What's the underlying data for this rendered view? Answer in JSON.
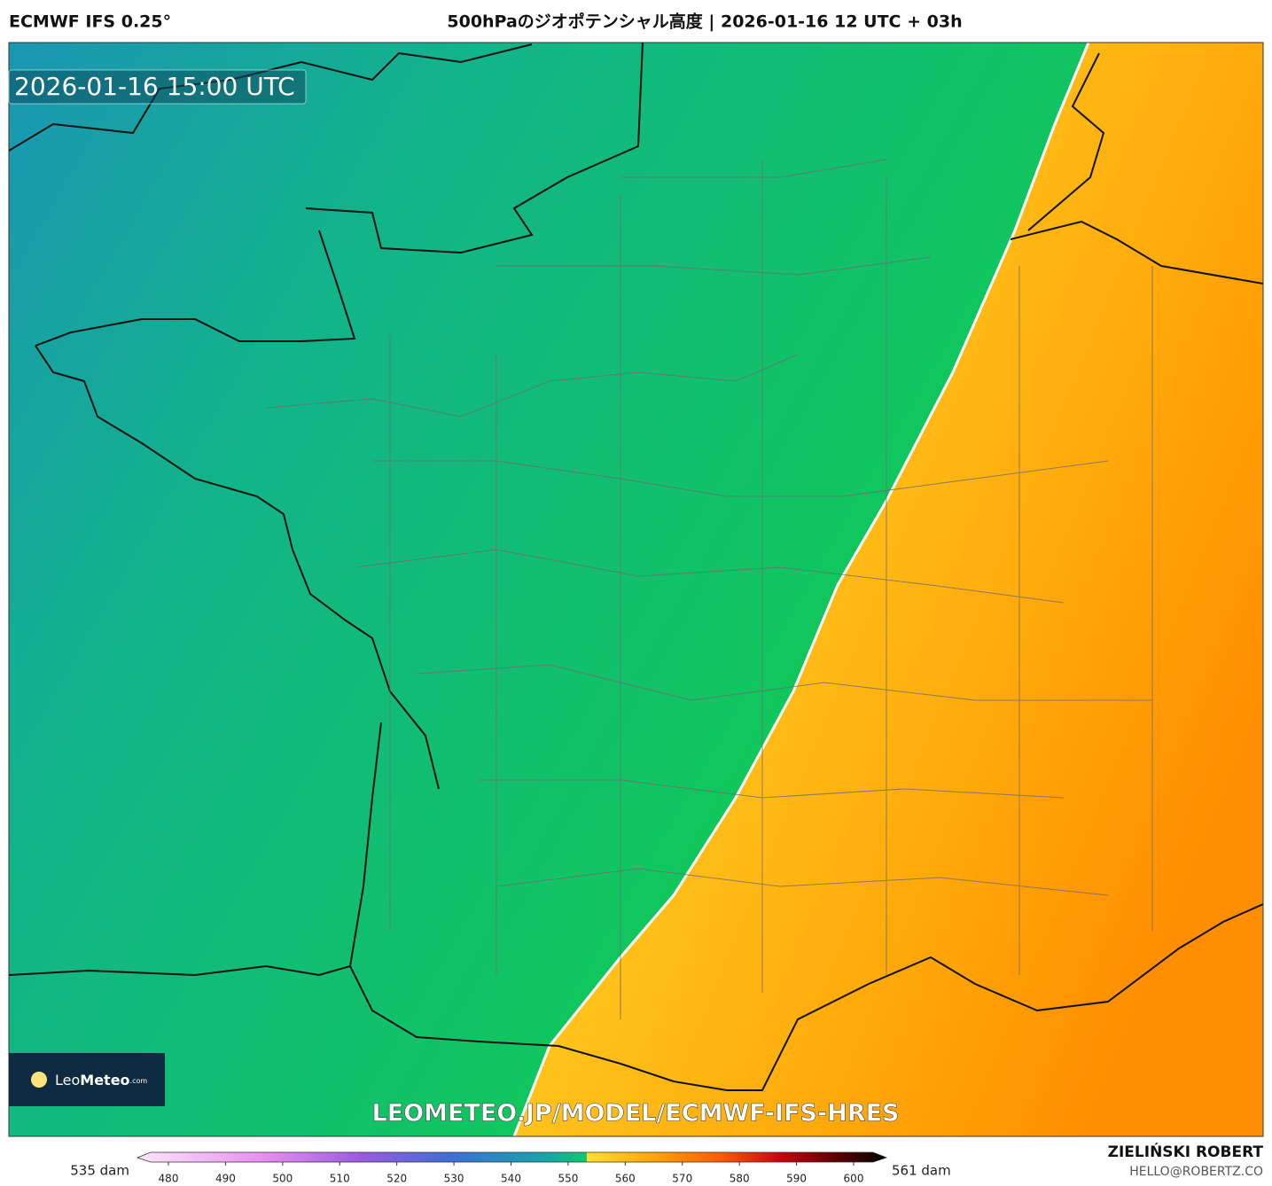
{
  "header": {
    "model": "ECMWF IFS 0.25°",
    "title": "500hPaのジオポテンシャル高度 | 2026-01-16 12 UTC + 03h"
  },
  "map": {
    "valid_time": "2026-01-16 15:00 UTC",
    "watermark": "LEOMETEO.JP/MODEL/ECMWF-IFS-HRES",
    "logo": {
      "name_light": "Leo",
      "name_bold": "Meteo",
      "suffix": ".com"
    }
  },
  "colorbar": {
    "min_label": "535 dam",
    "max_label": "561 dam",
    "ticks": [
      480,
      490,
      500,
      510,
      520,
      530,
      540,
      550,
      560,
      570,
      580,
      590,
      600
    ]
  },
  "footer": {
    "author": "ZIELIŃSKI ROBERT",
    "email": "HELLO@ROBERTZ.CO"
  }
}
